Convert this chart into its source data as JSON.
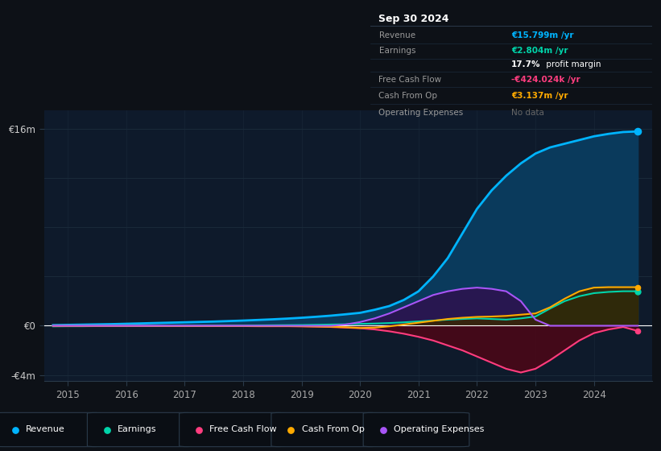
{
  "bg_color": "#0d1117",
  "plot_bg_color": "#0e1a2b",
  "grid_color": "#1a2a3a",
  "years": [
    2014.75,
    2015.0,
    2015.25,
    2015.5,
    2015.75,
    2016.0,
    2016.25,
    2016.5,
    2016.75,
    2017.0,
    2017.25,
    2017.5,
    2017.75,
    2018.0,
    2018.25,
    2018.5,
    2018.75,
    2019.0,
    2019.25,
    2019.5,
    2019.75,
    2020.0,
    2020.25,
    2020.5,
    2020.75,
    2021.0,
    2021.25,
    2021.5,
    2021.75,
    2022.0,
    2022.25,
    2022.5,
    2022.75,
    2023.0,
    2023.25,
    2023.5,
    2023.75,
    2024.0,
    2024.25,
    2024.5,
    2024.75
  ],
  "revenue": [
    0.05,
    0.07,
    0.09,
    0.11,
    0.13,
    0.16,
    0.19,
    0.22,
    0.25,
    0.28,
    0.31,
    0.34,
    0.38,
    0.42,
    0.47,
    0.52,
    0.58,
    0.65,
    0.73,
    0.82,
    0.93,
    1.05,
    1.3,
    1.6,
    2.1,
    2.8,
    4.0,
    5.5,
    7.5,
    9.5,
    11.0,
    12.2,
    13.2,
    14.0,
    14.5,
    14.8,
    15.1,
    15.4,
    15.6,
    15.75,
    15.799
  ],
  "earnings": [
    -0.05,
    -0.04,
    -0.04,
    -0.03,
    -0.03,
    -0.03,
    -0.02,
    -0.02,
    -0.02,
    -0.01,
    -0.01,
    0.0,
    0.01,
    0.02,
    0.03,
    0.04,
    0.05,
    0.06,
    0.08,
    0.1,
    0.12,
    0.15,
    0.18,
    0.22,
    0.28,
    0.35,
    0.42,
    0.5,
    0.55,
    0.6,
    0.55,
    0.5,
    0.6,
    0.75,
    1.4,
    2.0,
    2.4,
    2.65,
    2.75,
    2.804,
    2.804
  ],
  "free_cash_flow": [
    -0.02,
    -0.02,
    -0.02,
    -0.02,
    -0.02,
    -0.02,
    -0.02,
    -0.02,
    -0.03,
    -0.03,
    -0.03,
    -0.03,
    -0.03,
    -0.03,
    -0.04,
    -0.04,
    -0.04,
    -0.05,
    -0.07,
    -0.1,
    -0.15,
    -0.2,
    -0.3,
    -0.45,
    -0.65,
    -0.9,
    -1.2,
    -1.6,
    -2.0,
    -2.5,
    -3.0,
    -3.5,
    -3.8,
    -3.5,
    -2.8,
    -2.0,
    -1.2,
    -0.6,
    -0.3,
    -0.1,
    -0.424
  ],
  "cash_from_op": [
    -0.01,
    -0.01,
    -0.01,
    -0.01,
    -0.01,
    -0.01,
    -0.01,
    -0.02,
    -0.02,
    -0.02,
    -0.02,
    -0.02,
    -0.02,
    -0.02,
    -0.03,
    -0.03,
    -0.03,
    -0.04,
    -0.06,
    -0.08,
    -0.12,
    -0.18,
    -0.15,
    -0.05,
    0.1,
    0.25,
    0.4,
    0.55,
    0.65,
    0.72,
    0.75,
    0.8,
    0.9,
    1.0,
    1.5,
    2.2,
    2.8,
    3.1,
    3.137,
    3.137,
    3.137
  ],
  "op_expenses": [
    0.0,
    0.0,
    0.0,
    0.0,
    0.0,
    0.0,
    0.0,
    0.0,
    0.0,
    0.0,
    0.0,
    0.0,
    0.0,
    0.0,
    0.0,
    0.0,
    0.0,
    0.0,
    0.0,
    0.0,
    0.1,
    0.3,
    0.6,
    1.0,
    1.5,
    2.0,
    2.5,
    2.8,
    3.0,
    3.1,
    3.0,
    2.8,
    2.0,
    0.5,
    0.0,
    0.0,
    0.0,
    0.0,
    0.0,
    0.0,
    0.0
  ],
  "revenue_color": "#00b4ff",
  "earnings_color": "#00d4aa",
  "free_cash_flow_color": "#ff3d7f",
  "cash_from_op_color": "#ffaa00",
  "op_expenses_color": "#a855f7",
  "revenue_fill": "#0a3a5c",
  "earnings_fill": "#083030",
  "free_cash_flow_fill": "#4a0818",
  "cash_from_op_fill": "#3a2800",
  "op_expenses_fill": "#2a1550",
  "xlim": [
    2014.6,
    2025.0
  ],
  "ylim": [
    -4.5,
    17.5
  ],
  "ytick_positions": [
    -4,
    0,
    16
  ],
  "ytick_labels": [
    "-€4m",
    "€0",
    "€16m"
  ],
  "xticks": [
    2015,
    2016,
    2017,
    2018,
    2019,
    2020,
    2021,
    2022,
    2023,
    2024
  ],
  "legend_items": [
    "Revenue",
    "Earnings",
    "Free Cash Flow",
    "Cash From Op",
    "Operating Expenses"
  ],
  "legend_colors": [
    "#00b4ff",
    "#00d4aa",
    "#ff3d7f",
    "#ffaa00",
    "#a855f7"
  ],
  "info_box": {
    "date": "Sep 30 2024",
    "rows": [
      {
        "label": "Revenue",
        "value": "€15.799m /yr",
        "value_color": "#00b4ff"
      },
      {
        "label": "Earnings",
        "value": "€2.804m /yr",
        "value_color": "#00d4aa"
      },
      {
        "label": "",
        "value": "17.7% profit margin",
        "value_color": "#ffffff"
      },
      {
        "label": "Free Cash Flow",
        "value": "-€424.024k /yr",
        "value_color": "#ff3d7f"
      },
      {
        "label": "Cash From Op",
        "value": "€3.137m /yr",
        "value_color": "#ffaa00"
      },
      {
        "label": "Operating Expenses",
        "value": "No data",
        "value_color": "#666666"
      }
    ]
  }
}
